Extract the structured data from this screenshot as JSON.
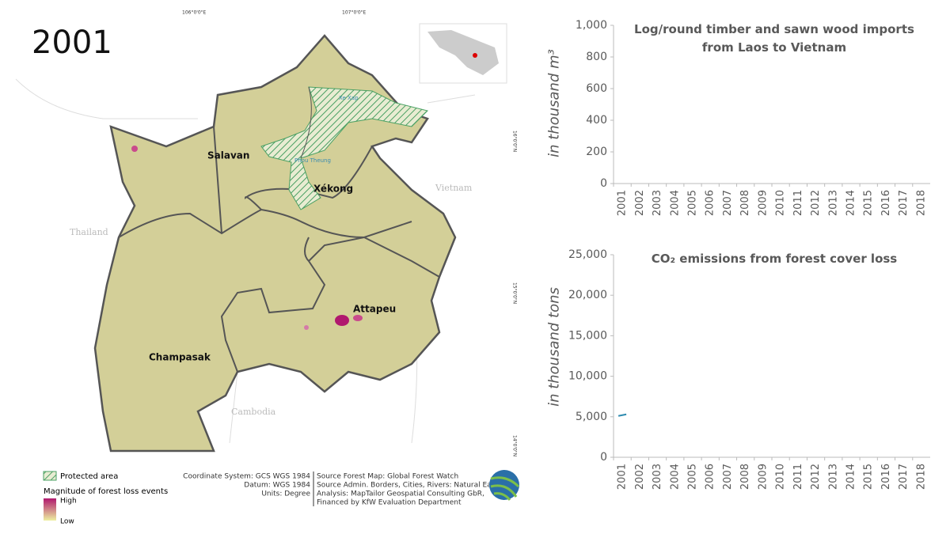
{
  "year": "2001",
  "map": {
    "regions": [
      "Salavan",
      "Xékong",
      "Attapeu",
      "Champasak"
    ],
    "countries": [
      "Thailand",
      "Vietnam",
      "Cambodia"
    ],
    "protected_areas": [
      "Xe Xap",
      "Phou Theung"
    ],
    "coordinates": [
      "106°0'0\"E",
      "107°0'0\"E",
      "16°0'0\"N",
      "15°0'0\"N",
      "14°0'0\"N"
    ],
    "legend": {
      "protected": "Protected area",
      "magnitude": "Magnitude of forest loss events",
      "high": "High",
      "low": "Low"
    },
    "credits": [
      "Coordinate System: GCS WGS 1984",
      "Datum: WGS 1984",
      "Units: Degree"
    ],
    "sources": [
      "Source Forest Map: Global Forest Watch",
      "Source Admin. Borders, Cities, Rivers: Natural Earth",
      "Analysis: MapTailor Geospatial Consulting GbR,",
      "Financed by KfW Evaluation Department"
    ]
  },
  "chart_data": [
    {
      "type": "line",
      "title": "Log/round timber and sawn wood imports from Laos to Vietnam",
      "y_label": "in thousand m³",
      "categories": [
        "2001",
        "2002",
        "2003",
        "2004",
        "2005",
        "2006",
        "2007",
        "2008",
        "2009",
        "2010",
        "2011",
        "2012",
        "2013",
        "2014",
        "2015",
        "2016",
        "2017",
        "2018"
      ],
      "series": [
        {
          "color": "#2e8bb0",
          "values": [
            null,
            null,
            null,
            null,
            null,
            null,
            null,
            null,
            null,
            null,
            null,
            null,
            null,
            null,
            null,
            null,
            null,
            null
          ]
        }
      ],
      "ylim": [
        0,
        1000
      ],
      "yticks": [
        0,
        200,
        400,
        600,
        800,
        {
          "value": 1000,
          "label": "1,000"
        }
      ]
    },
    {
      "type": "line",
      "title": "CO₂ emissions from forest cover loss",
      "y_label": "in thousand tons",
      "categories": [
        "2001",
        "2002",
        "2003",
        "2004",
        "2005",
        "2006",
        "2007",
        "2008",
        "2009",
        "2010",
        "2011",
        "2012",
        "2013",
        "2014",
        "2015",
        "2016",
        "2017",
        "2018"
      ],
      "series": [
        {
          "color": "#2e8bb0",
          "values": [
            5200,
            null,
            null,
            null,
            null,
            null,
            null,
            null,
            null,
            null,
            null,
            null,
            null,
            null,
            null,
            null,
            null,
            null
          ]
        }
      ],
      "ylim": [
        0,
        25000
      ],
      "yticks": [
        0,
        {
          "value": 5000,
          "label": "5,000"
        },
        {
          "value": 10000,
          "label": "10,000"
        },
        {
          "value": 15000,
          "label": "15,000"
        },
        {
          "value": 20000,
          "label": "20,000"
        },
        {
          "value": 25000,
          "label": "25,000"
        }
      ]
    }
  ]
}
